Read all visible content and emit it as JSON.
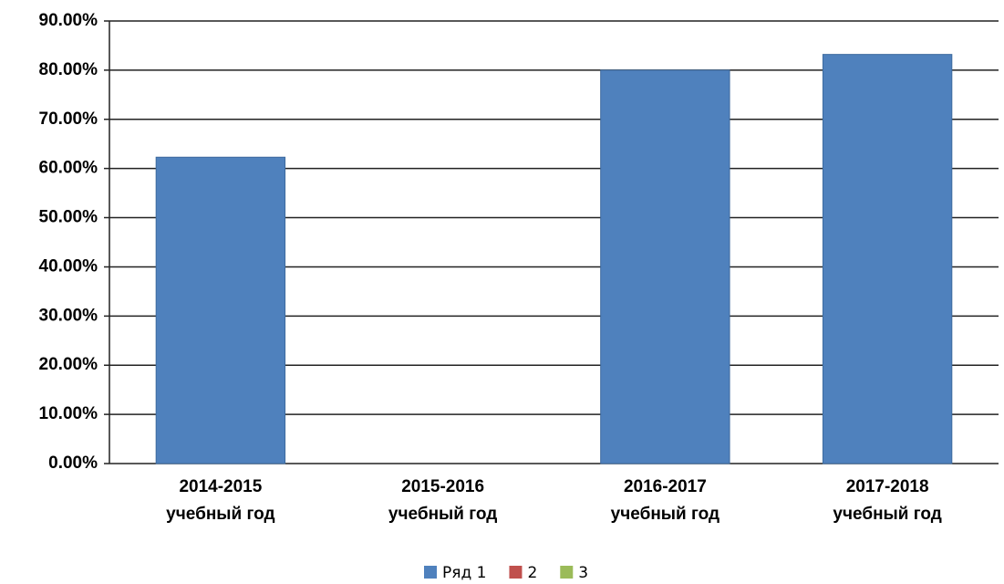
{
  "chart_data": {
    "type": "bar",
    "categories": [
      "2014-2015 учебный год",
      "2015-2016 учебный год",
      "2016-2017 учебный год",
      "2017-2018 учебный год"
    ],
    "series": [
      {
        "name": "Ряд 1",
        "color": "#4f81bd",
        "values": [
          62.3,
          0,
          80.0,
          83.2
        ]
      },
      {
        "name": "2",
        "color": "#c0504d",
        "values": [
          null,
          null,
          null,
          null
        ]
      },
      {
        "name": "3",
        "color": "#9bbb59",
        "values": [
          null,
          null,
          null,
          null
        ]
      }
    ],
    "ylim": [
      0,
      90
    ],
    "yticks": [
      {
        "value": 0,
        "label": "0.00%"
      },
      {
        "value": 10,
        "label": "10.00%"
      },
      {
        "value": 20,
        "label": "20.00%"
      },
      {
        "value": 30,
        "label": "30.00%"
      },
      {
        "value": 40,
        "label": "40.00%"
      },
      {
        "value": 50,
        "label": "50.00%"
      },
      {
        "value": 60,
        "label": "60.00%"
      },
      {
        "value": 70,
        "label": "70.00%"
      },
      {
        "value": 80,
        "label": "80.00%"
      },
      {
        "value": 90,
        "label": "90.00%"
      }
    ],
    "grid": true,
    "legend": "bottom"
  }
}
